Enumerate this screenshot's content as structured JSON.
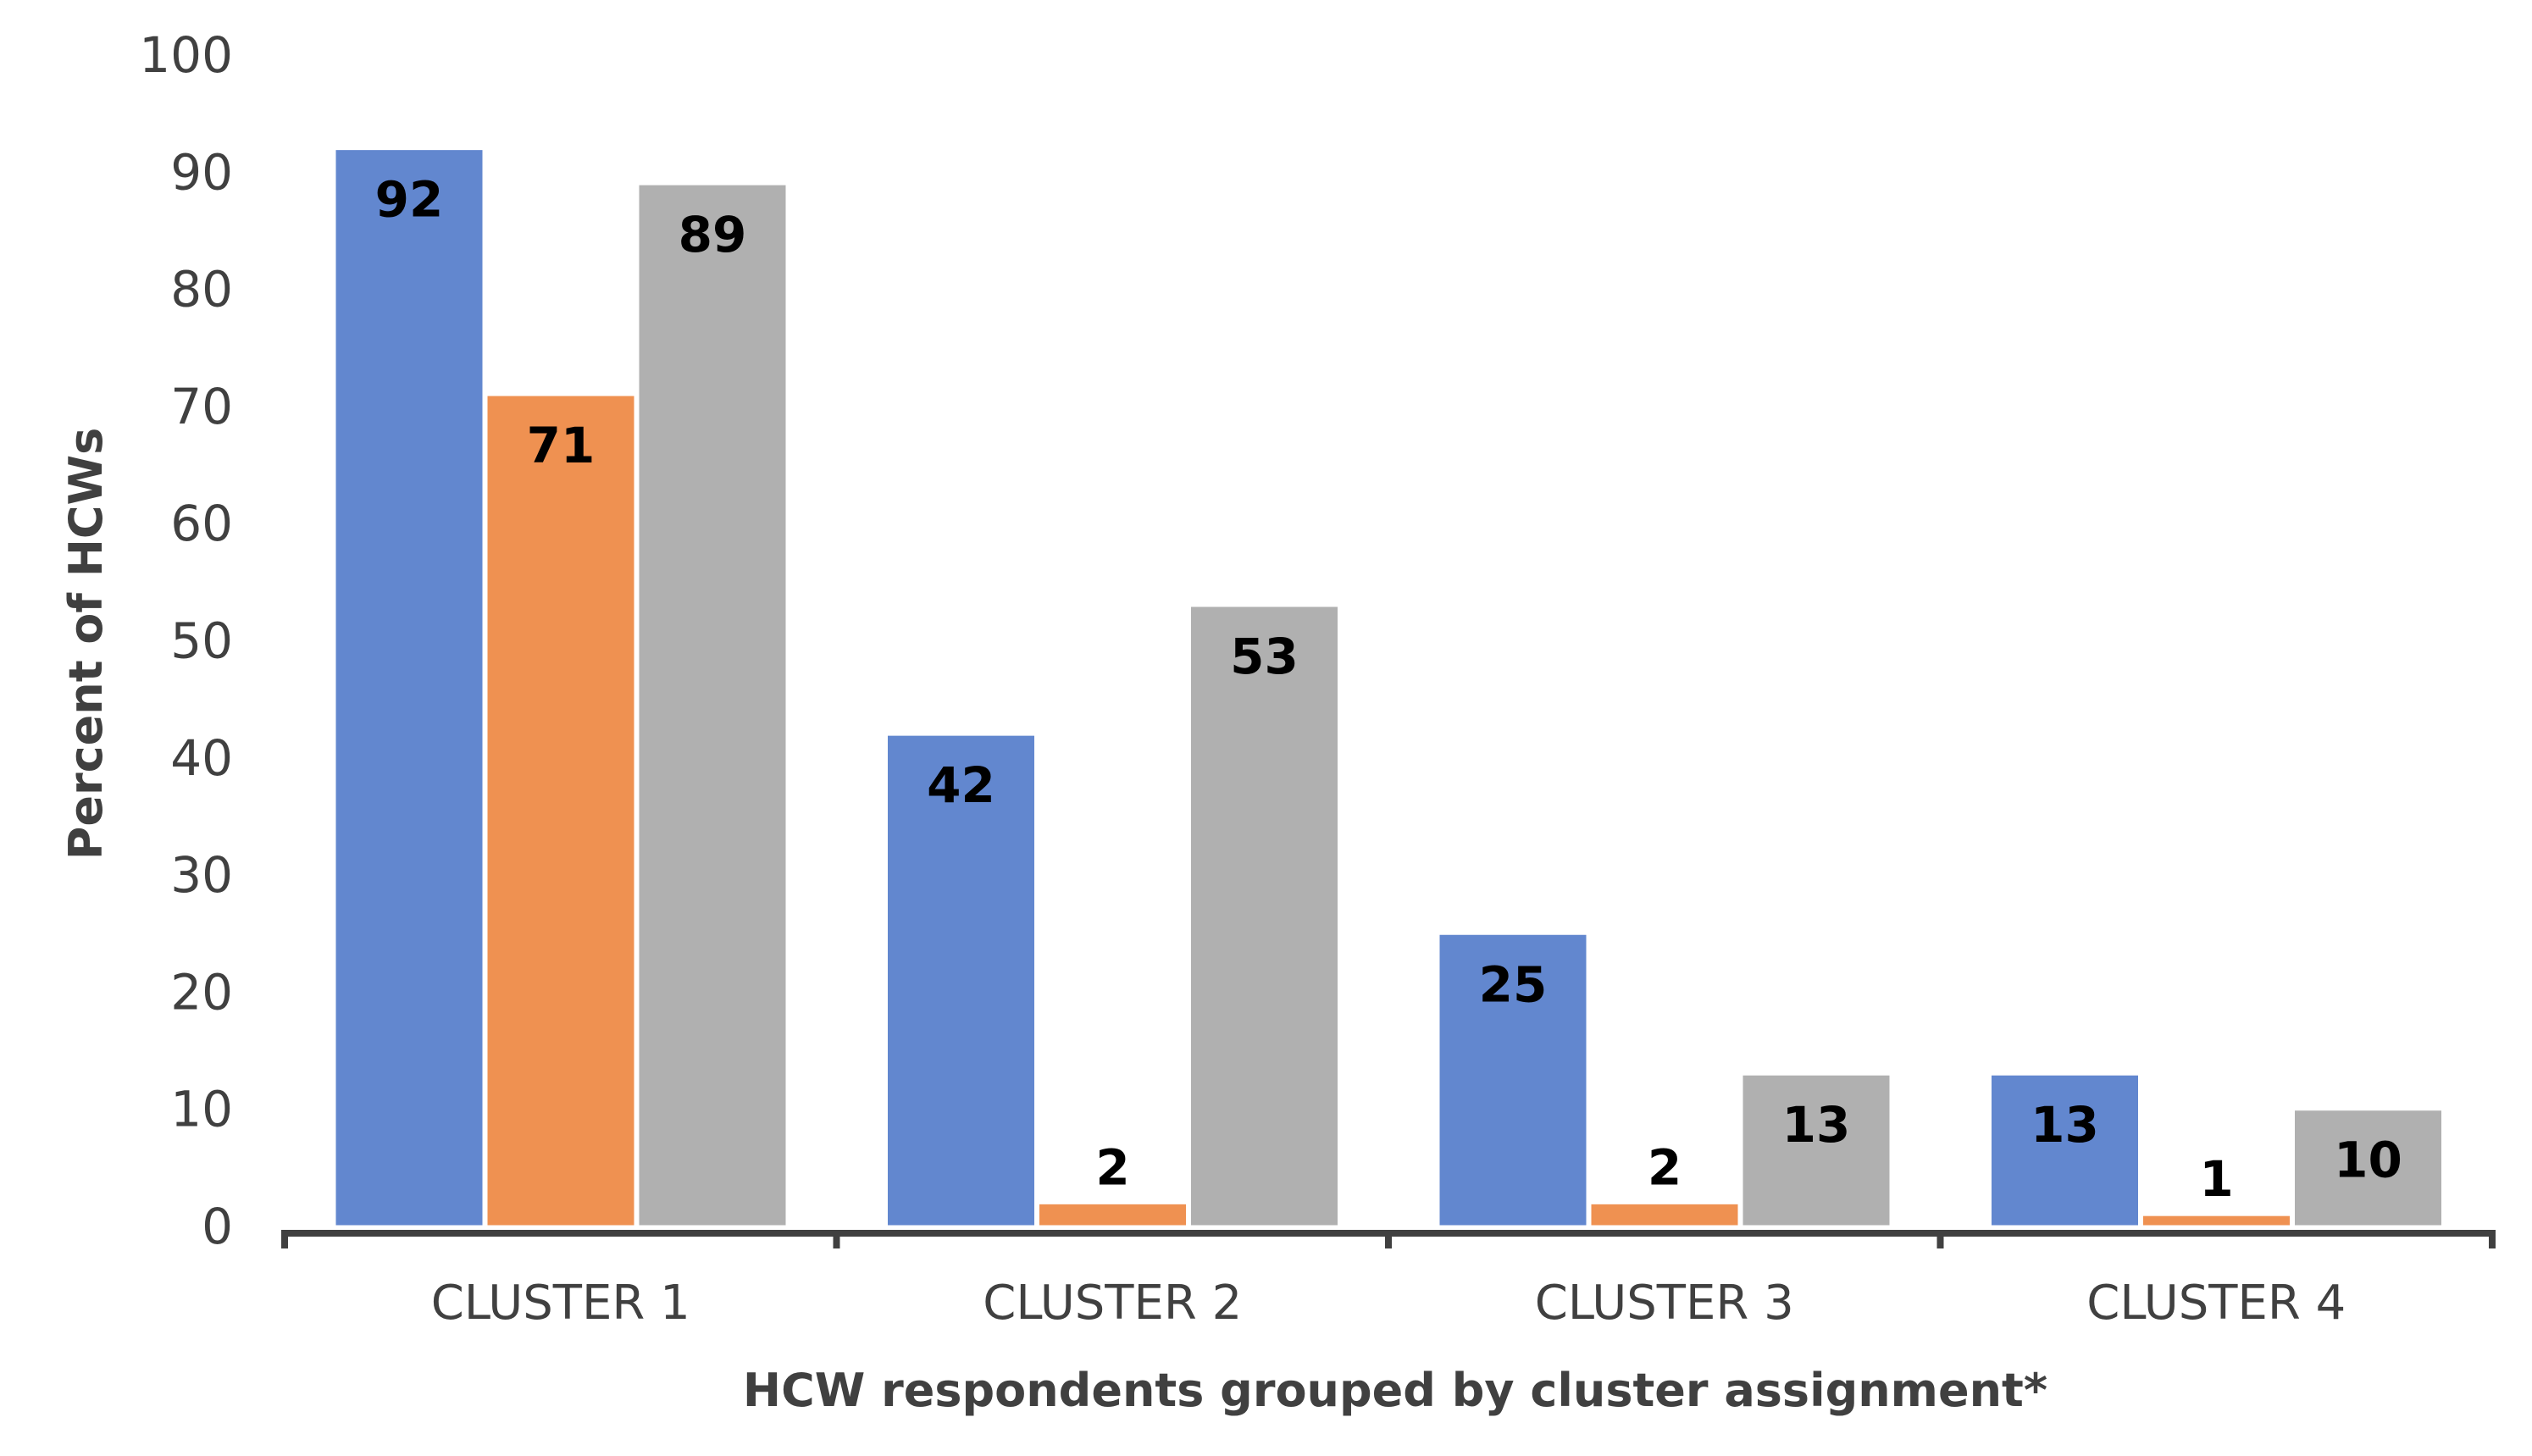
{
  "chart_data": {
    "type": "bar",
    "title": "",
    "xlabel": "HCW respondents grouped by cluster assignment*",
    "ylabel": "Percent of HCWs",
    "ylim": [
      0,
      100
    ],
    "yticks": [
      0,
      10,
      20,
      30,
      40,
      50,
      60,
      70,
      80,
      90,
      100
    ],
    "categories": [
      "CLUSTER 1",
      "CLUSTER 2",
      "CLUSTER 3",
      "CLUSTER 4"
    ],
    "series": [
      {
        "values": [
          92,
          42,
          25,
          13
        ],
        "color": "#6287cf"
      },
      {
        "values": [
          71,
          2,
          2,
          1
        ],
        "color": "#ef9151"
      },
      {
        "values": [
          89,
          53,
          13,
          10
        ],
        "color": "#b0b0b0"
      }
    ],
    "data_labels": "inside-end",
    "grid": false,
    "legend": "none"
  }
}
